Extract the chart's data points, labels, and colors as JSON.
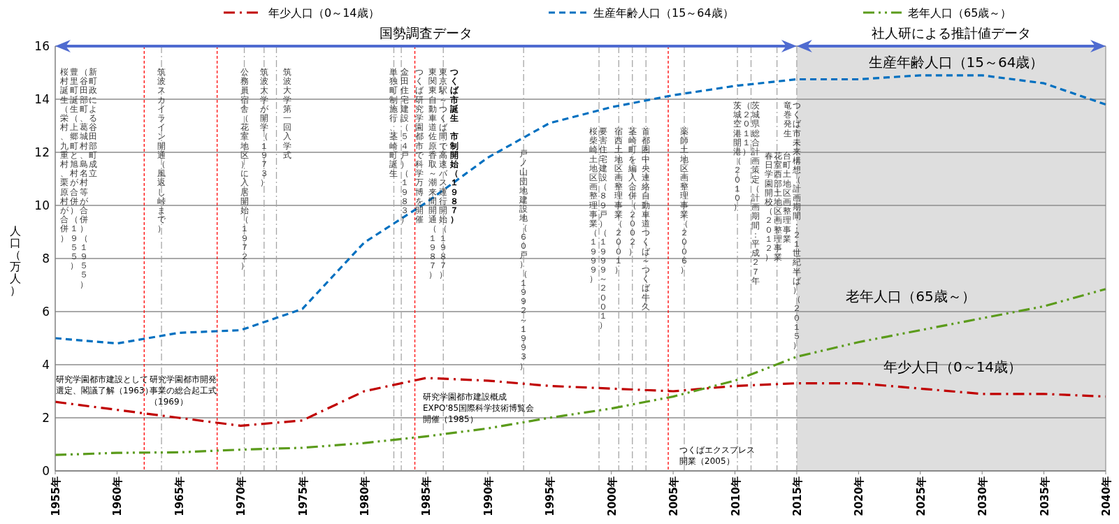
{
  "chart_data": {
    "type": "line",
    "ylabel": "人口（万人）",
    "legend": "top",
    "grid": "y",
    "marker": "none",
    "x": [
      1955,
      1960,
      1965,
      1970,
      1975,
      1980,
      1985,
      1990,
      1995,
      2000,
      2005,
      2010,
      2015,
      2020,
      2025,
      2030,
      2035,
      2040
    ],
    "xlim": [
      1955,
      2040
    ],
    "xticks": [
      {
        "value": 1955,
        "label": "1955年"
      },
      {
        "value": 1960,
        "label": "1960年"
      },
      {
        "value": 1965,
        "label": "1965年"
      },
      {
        "value": 1970,
        "label": "1970年"
      },
      {
        "value": 1975,
        "label": "1975年"
      },
      {
        "value": 1980,
        "label": "1980年"
      },
      {
        "value": 1985,
        "label": "1985年"
      },
      {
        "value": 1990,
        "label": "1990年"
      },
      {
        "value": 1995,
        "label": "1995年"
      },
      {
        "value": 2000,
        "label": "2000年"
      },
      {
        "value": 2005,
        "label": "2005年"
      },
      {
        "value": 2010,
        "label": "2010年"
      },
      {
        "value": 2015,
        "label": "2015年"
      },
      {
        "value": 2020,
        "label": "2020年"
      },
      {
        "value": 2025,
        "label": "2025年"
      },
      {
        "value": 2030,
        "label": "2030年"
      },
      {
        "value": 2035,
        "label": "2035年"
      },
      {
        "value": 2040,
        "label": "2040年"
      }
    ],
    "ylim": [
      0,
      16
    ],
    "yticks": [
      0,
      2,
      4,
      6,
      8,
      10,
      12,
      14,
      16
    ],
    "series": [
      {
        "name": "年少人口（0～14歳）",
        "color": "#c00000",
        "line_style": "dashdot",
        "values": [
          2.6,
          2.3,
          2.0,
          1.7,
          1.9,
          3.0,
          3.5,
          3.4,
          3.2,
          3.1,
          3.0,
          3.2,
          3.3,
          3.3,
          3.1,
          2.9,
          2.9,
          2.8
        ]
      },
      {
        "name": "生産年齢人口（15～64歳）",
        "color": "#0070c0",
        "line_style": "dashed",
        "values": [
          5.0,
          4.8,
          5.2,
          5.3,
          6.1,
          8.6,
          10.1,
          11.8,
          13.1,
          13.7,
          14.15,
          14.5,
          14.75,
          14.75,
          14.9,
          14.9,
          14.6,
          13.8
        ]
      },
      {
        "name": "老年人口（65歳～）",
        "color": "#5b9b1b",
        "line_style": "dashdotdot",
        "values": [
          0.6,
          0.68,
          0.7,
          0.8,
          0.87,
          1.05,
          1.3,
          1.6,
          2.0,
          2.35,
          2.8,
          3.4,
          4.3,
          4.85,
          5.3,
          5.75,
          6.2,
          6.85
        ]
      }
    ],
    "bands": [
      {
        "axis": "x",
        "from": 2015,
        "to": 2040,
        "label": "社人研による推計値データ",
        "color": "#dedede"
      }
    ],
    "ref_lines": [
      {
        "axis": "x",
        "value": 1962.2,
        "color": "#ff0000",
        "line_style": "dashed"
      },
      {
        "axis": "x",
        "value": 1963.6,
        "label": "筑波スカイライン開通（風返し峠まで）",
        "color": "#a6a6a6",
        "line_style": "dashdot"
      },
      {
        "axis": "x",
        "value": 1968.1,
        "color": "#ff0000",
        "line_style": "dashed"
      },
      {
        "axis": "x",
        "value": 1970.3,
        "label": "公務員宿舎（花室地区）に入居開始（１９７２）",
        "color": "#a6a6a6",
        "line_style": "dashdot"
      },
      {
        "axis": "x",
        "value": 1971.9,
        "label": "筑波大学が開学（１９７３）",
        "color": "#a6a6a6",
        "line_style": "dashdot"
      },
      {
        "axis": "x",
        "value": 1972.9,
        "label": "筑波大学第一回入学式",
        "color": "#a6a6a6",
        "line_style": "dashdot"
      },
      {
        "axis": "x",
        "value": 1982.4,
        "label": "単独町制施行、茎崎町誕生",
        "color": "#a6a6a6",
        "line_style": "dashdot"
      },
      {
        "axis": "x",
        "value": 1983.0,
        "label": "金田住宅建設（５４戸）（１９８３）",
        "color": "#a6a6a6",
        "line_style": "dashdot"
      },
      {
        "axis": "x",
        "value": 1984.1,
        "label": "つくば研究学園都市で科学万博を開催",
        "color": "#ff0000",
        "line_style": "dashed"
      },
      {
        "axis": "x",
        "value": 1986.4,
        "label": "東京駅～つくば間で高速バス運行開始（１９８７）",
        "color": "#a6a6a6",
        "line_style": "dashdot"
      },
      {
        "axis": "x",
        "value": 1992.9,
        "label": "戸ノ山団地建設地（６０戸）（１９９２～１９９３）",
        "color": "#a6a6a6",
        "line_style": "dashdot"
      },
      {
        "axis": "x",
        "value": 1999.0,
        "label": "要害住宅建設（８９戸）（１９９９～２００１）",
        "color": "#a6a6a6",
        "line_style": "dashdot"
      },
      {
        "axis": "x",
        "value": 2000.6,
        "label": "宿西土地区画整理事業（２００１）",
        "color": "#a6a6a6",
        "line_style": "dashdot"
      },
      {
        "axis": "x",
        "value": 2001.7,
        "label": "茎崎町を編入合併（２００２）",
        "color": "#a6a6a6",
        "line_style": "dashdot"
      },
      {
        "axis": "x",
        "value": 2002.8,
        "label": "首都圏中央連絡自動車道つくば～つくば牛久",
        "color": "#a6a6a6",
        "line_style": "dashdot"
      },
      {
        "axis": "x",
        "value": 2004.6,
        "color": "#ff0000",
        "line_style": "dashed"
      },
      {
        "axis": "x",
        "value": 2005.9,
        "label": "薬師土地区画整理事業（２００６）",
        "color": "#a6a6a6",
        "line_style": "dashdot"
      },
      {
        "axis": "x",
        "value": 2010.2,
        "label": "茨城空港開港（２０１０）",
        "color": "#a6a6a6",
        "line_style": "dashdot"
      },
      {
        "axis": "x",
        "value": 2011.3,
        "label": "茨城県総合計画策定（計画期間：平成２７年",
        "color": "#a6a6a6",
        "line_style": "dashdot"
      },
      {
        "axis": "x",
        "value": 2013.4,
        "label": "竜巻発生",
        "color": "#a6a6a6",
        "line_style": "dashdot"
      },
      {
        "axis": "x",
        "value": 2015.0,
        "label": "つくば市未来構想（計画期間：２１世紀半ば）（２０１５）",
        "color": "#a6a6a6",
        "line_style": "dashdot"
      }
    ],
    "annotations": [
      "新町政による谷田部町成立",
      "（谷田部町、葛城村、島名村等が合併）（１９５５）",
      "豊里町誕生（上郷町と旭村が合併）（１９５５）",
      "桜村誕生（栄村、九重村、栗原村が合併）",
      "つくば市誕生",
      "市制開始（１９８７）",
      "東関東自動車道佐原香取～潮来間開通（１９８７）",
      "桜柴崎土地区画整理事業（１９９９）",
      "（２０１１）",
      "台町土地区画整理事業",
      "花室西部土地区画整理事業",
      "春日学園開校（２０１２）",
      "研究学園都市建設として選定、閣議了解（1963）",
      "研究学園都市開発事業の総合起工式（1969）",
      "研究学園都市建設概成EXPO'85国際科学技術博覧会開催（1985）",
      "つくばエクスプレス開業（2005）",
      "生産年齢人口（15～64歳）",
      "老年人口（65歳～）",
      "年少人口（0～14歳）",
      "国勢調査データ"
    ]
  }
}
